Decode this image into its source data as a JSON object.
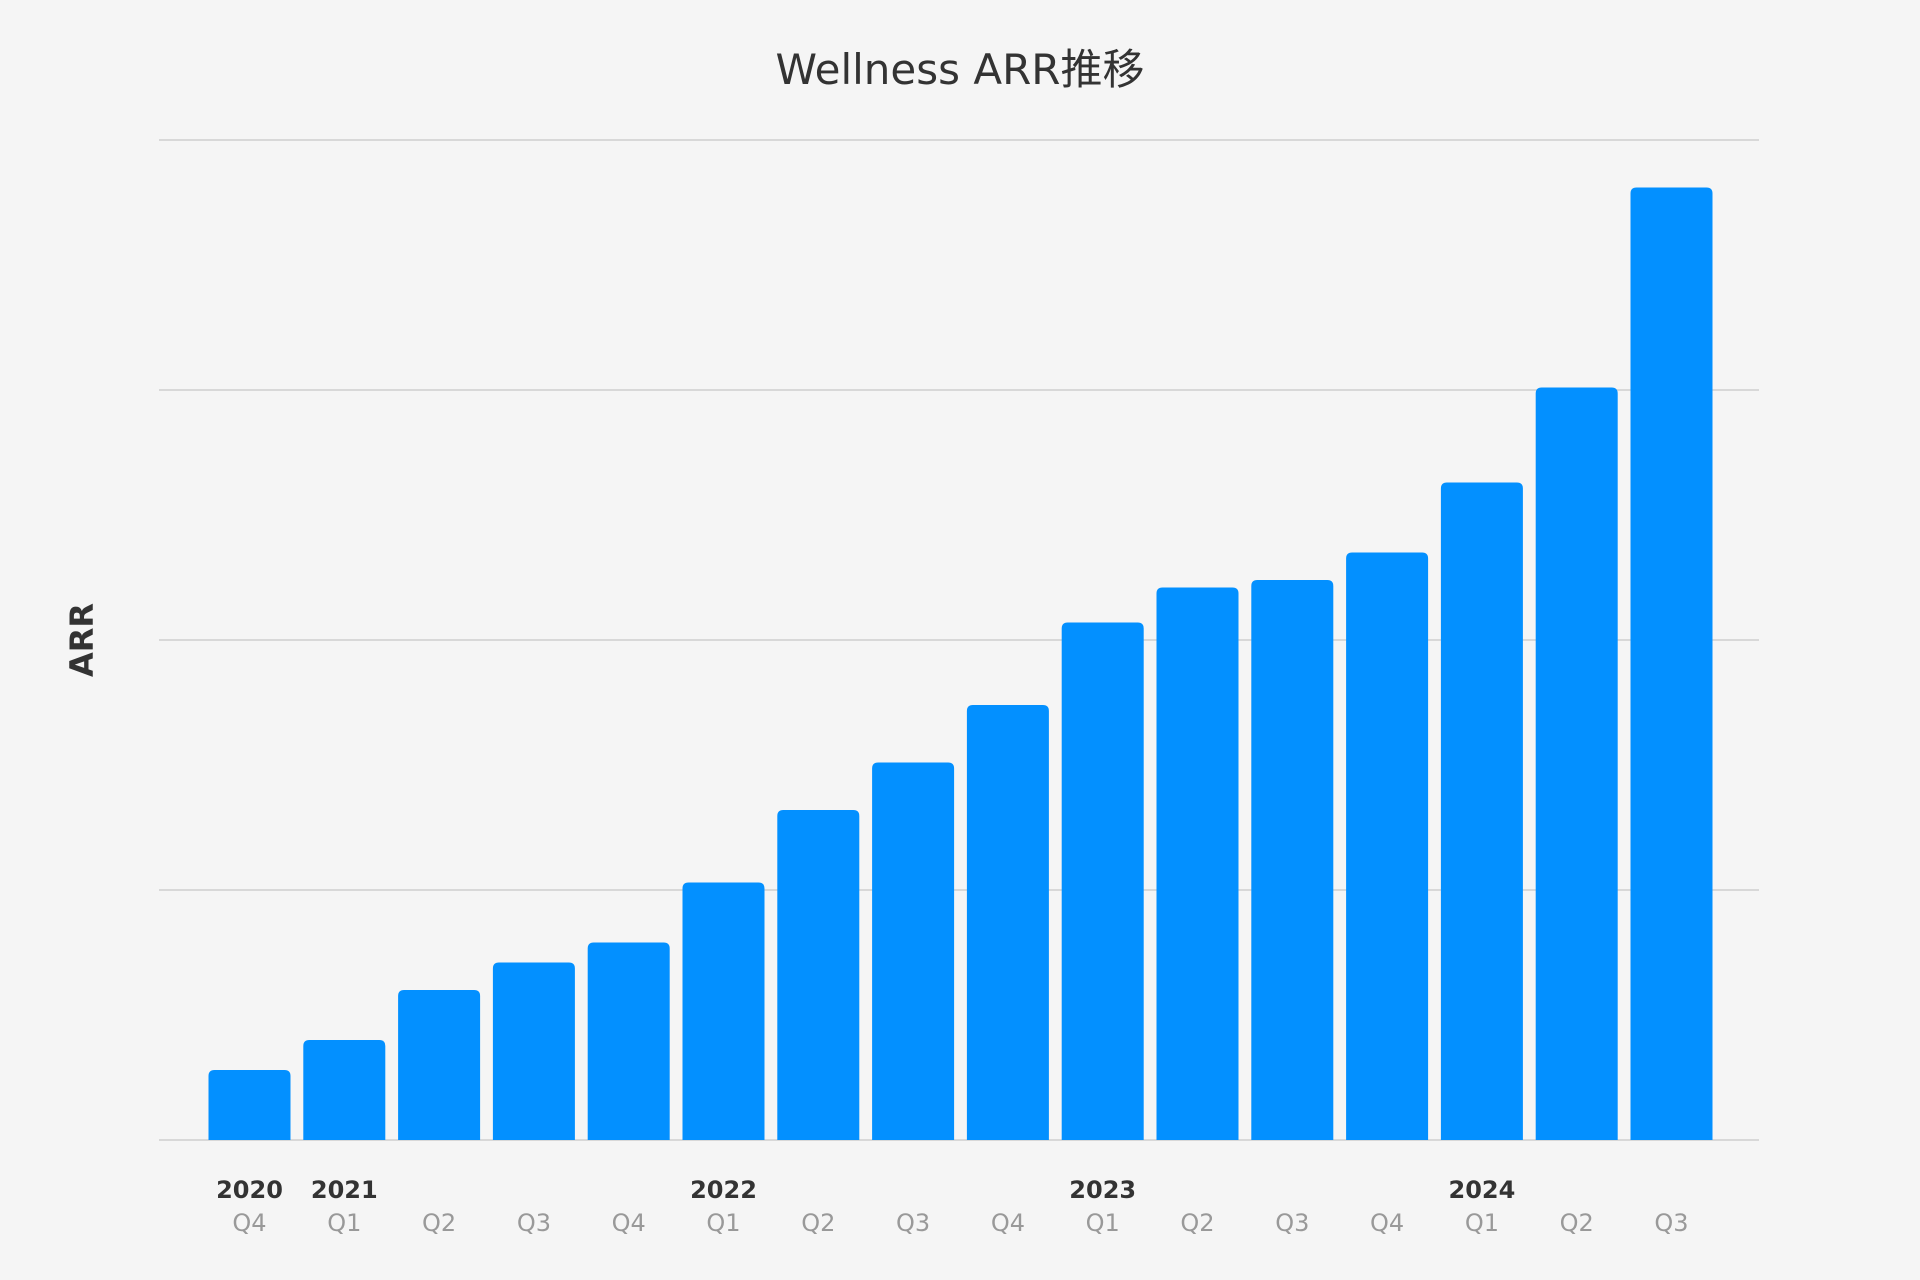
{
  "chart_data": {
    "type": "bar",
    "title": "Wellness ARR推移",
    "ylabel": "ARR",
    "xlabel": "",
    "categories": [
      {
        "year": "2020",
        "quarter": "Q4"
      },
      {
        "year": "2021",
        "quarter": "Q1"
      },
      {
        "year": "",
        "quarter": "Q2"
      },
      {
        "year": "",
        "quarter": "Q3"
      },
      {
        "year": "",
        "quarter": "Q4"
      },
      {
        "year": "2022",
        "quarter": "Q1"
      },
      {
        "year": "",
        "quarter": "Q2"
      },
      {
        "year": "",
        "quarter": "Q3"
      },
      {
        "year": "",
        "quarter": "Q4"
      },
      {
        "year": "2023",
        "quarter": "Q1"
      },
      {
        "year": "",
        "quarter": "Q2"
      },
      {
        "year": "",
        "quarter": "Q3"
      },
      {
        "year": "",
        "quarter": "Q4"
      },
      {
        "year": "2024",
        "quarter": "Q1"
      },
      {
        "year": "",
        "quarter": "Q2"
      },
      {
        "year": "",
        "quarter": "Q3"
      }
    ],
    "values": [
      0.28,
      0.4,
      0.6,
      0.71,
      0.79,
      1.03,
      1.32,
      1.51,
      1.74,
      2.07,
      2.21,
      2.24,
      2.35,
      2.63,
      3.01,
      3.81
    ],
    "ylim": [
      0,
      4
    ],
    "y_gridlines": [
      0,
      1,
      2,
      3,
      4
    ],
    "y_tick_labels_shown": false,
    "grid": true,
    "legend": "none",
    "colors": {
      "bar": "#0390ff",
      "background": "#f5f5f5",
      "grid": "#c8c8c8",
      "title": "#333333",
      "year_label": "#333333",
      "quarter_label": "#999999"
    }
  }
}
